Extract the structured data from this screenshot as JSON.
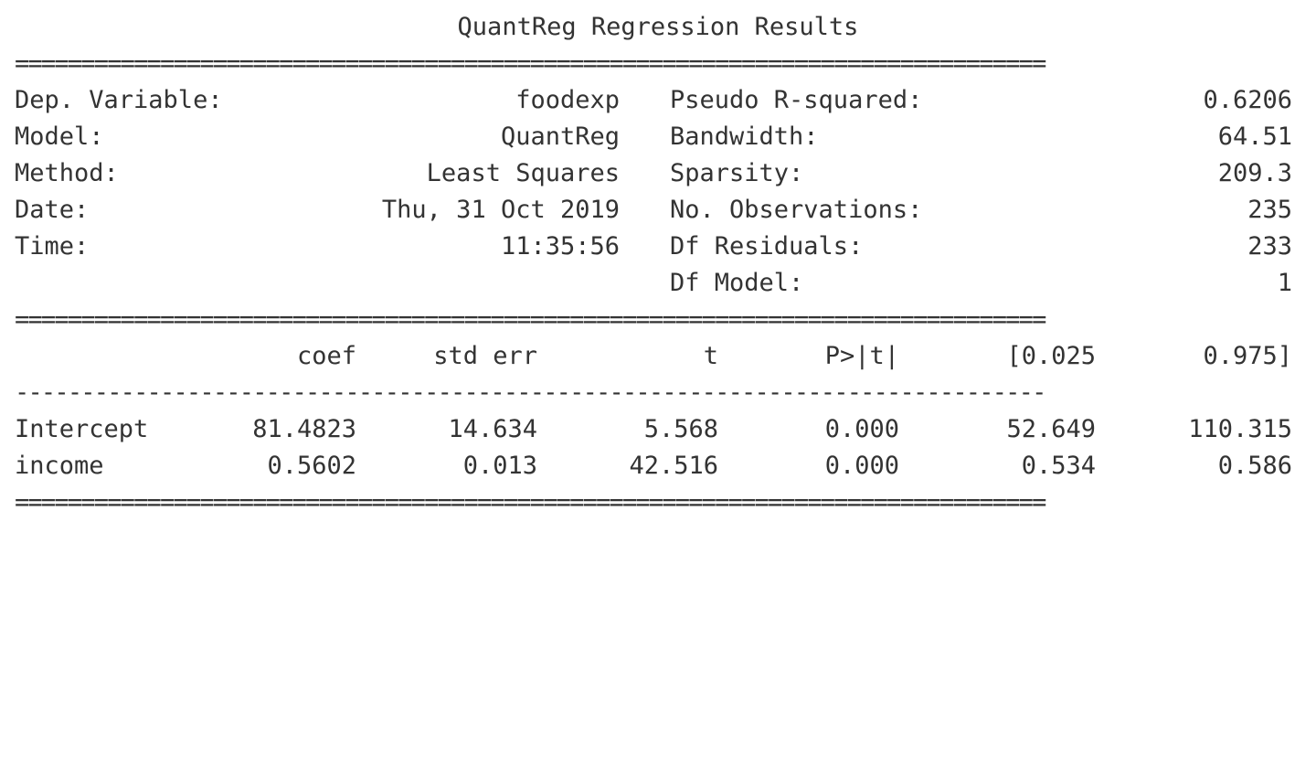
{
  "title": "QuantReg Regression Results",
  "double_rule": "==============================================================================",
  "single_rule": "------------------------------------------------------------------------------",
  "summary": {
    "left": [
      {
        "label": "Dep. Variable:",
        "value": "foodexp"
      },
      {
        "label": "Model:",
        "value": "QuantReg"
      },
      {
        "label": "Method:",
        "value": "Least Squares"
      },
      {
        "label": "Date:",
        "value": "Thu, 31 Oct 2019"
      },
      {
        "label": "Time:",
        "value": "11:35:56"
      }
    ],
    "right": [
      {
        "label": "Pseudo R-squared:",
        "value": "0.6206"
      },
      {
        "label": "Bandwidth:",
        "value": "64.51"
      },
      {
        "label": "Sparsity:",
        "value": "209.3"
      },
      {
        "label": "No. Observations:",
        "value": "235"
      },
      {
        "label": "Df Residuals:",
        "value": "233"
      },
      {
        "label": "Df Model:",
        "value": "1"
      }
    ]
  },
  "coef_table": {
    "headers": [
      "coef",
      "std err",
      "t",
      "P>|t|",
      "[0.025",
      "0.975]"
    ],
    "rows": [
      {
        "name": "Intercept",
        "values": [
          "81.4823",
          "14.634",
          "5.568",
          "0.000",
          "52.649",
          "110.315"
        ]
      },
      {
        "name": "income",
        "values": [
          "0.5602",
          "0.013",
          "42.516",
          "0.000",
          "0.534",
          "0.586"
        ]
      }
    ]
  }
}
